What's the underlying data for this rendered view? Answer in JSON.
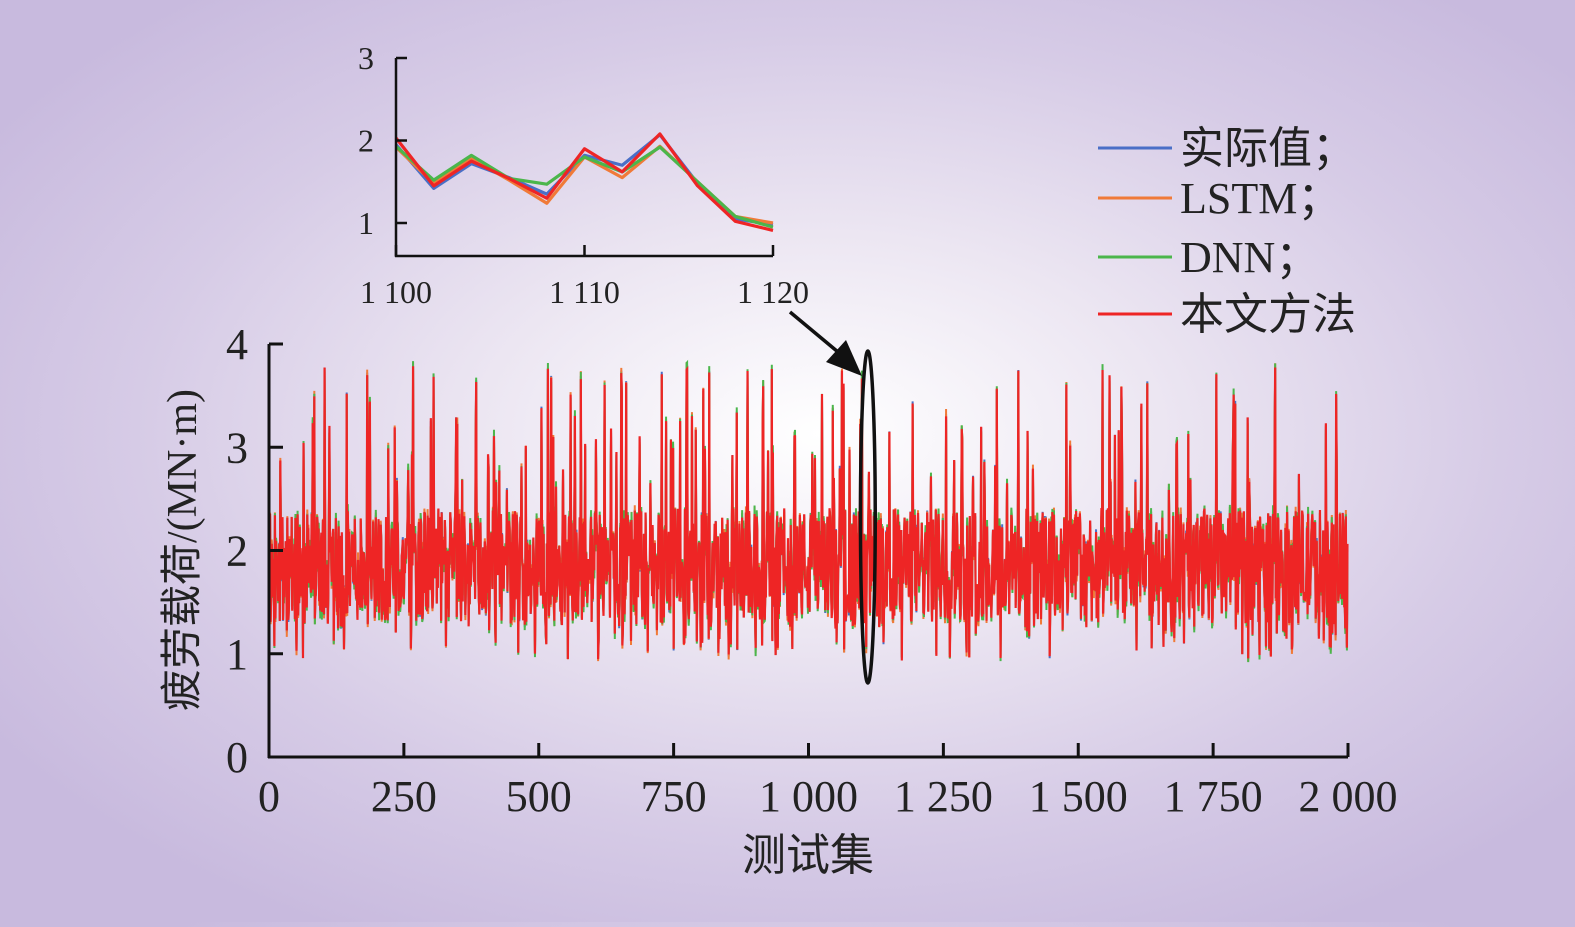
{
  "chart_data": [
    {
      "type": "line",
      "role": "main",
      "xlabel": "测试集",
      "ylabel": "疲劳载荷/(MN·m)",
      "xlim": [
        0,
        2000
      ],
      "ylim": [
        0,
        4
      ],
      "xticks": [
        0,
        250,
        500,
        750,
        1000,
        1250,
        1500,
        1750,
        2000
      ],
      "xtick_labels": [
        "0",
        "250",
        "500",
        "750",
        "1 000",
        "1 250",
        "1 500",
        "1 750",
        "2 000"
      ],
      "yticks": [
        0,
        1,
        2,
        3,
        4
      ],
      "ytick_labels": [
        "0",
        "1",
        "2",
        "3",
        "4"
      ],
      "legend_position": "top-right",
      "highlight_range": [
        1100,
        1120
      ],
      "series": [
        {
          "name": "实际值；",
          "color": "#4a6fc7"
        },
        {
          "name": "LSTM；",
          "color": "#f07a38"
        },
        {
          "name": "DNN；",
          "color": "#4bb64b"
        },
        {
          "name": "本文方法",
          "color": "#ee2525"
        }
      ],
      "series_note": "2000 oscillating points per series between about 0.9 and 3.8, mean near 2"
    },
    {
      "type": "line",
      "role": "inset",
      "xlim": [
        1100,
        1120
      ],
      "ylim": [
        1,
        3
      ],
      "xticks": [
        1100,
        1110,
        1120
      ],
      "xtick_labels": [
        "1 100",
        "1 110",
        "1 120"
      ],
      "yticks": [
        1,
        2,
        3
      ],
      "ytick_labels": [
        "1",
        "2",
        "3"
      ],
      "x": [
        1100,
        1102,
        1104,
        1106,
        1108,
        1110,
        1112,
        1114,
        1116,
        1118,
        1120
      ],
      "series": [
        {
          "name": "实际值；",
          "color": "#4a6fc7",
          "values": [
            1.95,
            1.42,
            1.72,
            1.55,
            1.35,
            1.82,
            1.7,
            2.07,
            1.48,
            1.05,
            0.98
          ]
        },
        {
          "name": "LSTM；",
          "color": "#f07a38",
          "values": [
            1.92,
            1.48,
            1.78,
            1.52,
            1.24,
            1.8,
            1.55,
            1.93,
            1.5,
            1.08,
            1.0
          ]
        },
        {
          "name": "DNN；",
          "color": "#4bb64b",
          "values": [
            1.93,
            1.52,
            1.82,
            1.54,
            1.47,
            1.8,
            1.62,
            1.92,
            1.5,
            1.08,
            0.95
          ]
        },
        {
          "name": "本文方法",
          "color": "#ee2525",
          "values": [
            2.03,
            1.45,
            1.75,
            1.54,
            1.3,
            1.9,
            1.62,
            2.08,
            1.45,
            1.02,
            0.91
          ]
        }
      ]
    }
  ]
}
